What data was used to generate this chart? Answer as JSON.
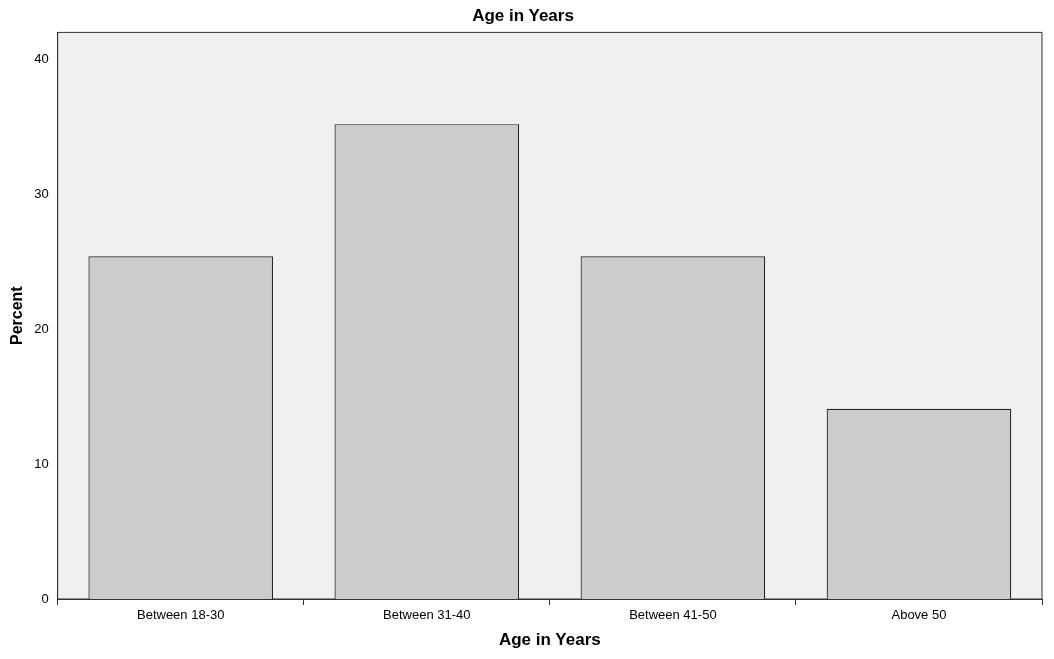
{
  "chart_data": {
    "type": "bar",
    "title": "Age in Years",
    "xlabel": "Age in Years",
    "ylabel": "Percent",
    "categories": [
      "Between 18-30",
      "Between 31-40",
      "Between 41-50",
      "Above 50"
    ],
    "values": [
      25.4,
      35.2,
      25.4,
      14.1
    ],
    "color": "#cccccc",
    "ylim": [
      0,
      42
    ],
    "yticks": [
      0,
      10,
      20,
      30,
      40
    ],
    "grid": false,
    "legend": false
  }
}
